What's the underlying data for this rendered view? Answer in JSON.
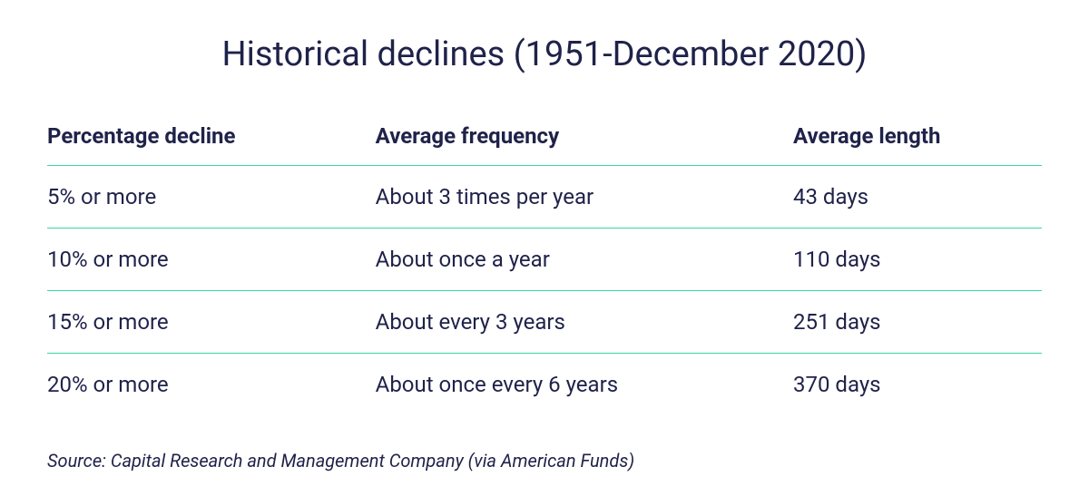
{
  "title": "Historical declines (1951-December 2020)",
  "colors": {
    "text": "#1f2249",
    "rule": "#37d9a5",
    "background": "#ffffff"
  },
  "columns": [
    "Percentage decline",
    "Average frequency",
    "Average length"
  ],
  "rows": [
    {
      "decline": "5% or more",
      "frequency": "About 3 times per year",
      "length": "43 days"
    },
    {
      "decline": "10% or more",
      "frequency": "About once a year",
      "length": "110 days"
    },
    {
      "decline": "15% or more",
      "frequency": "About every 3 years",
      "length": "251 days"
    },
    {
      "decline": "20% or more",
      "frequency": "About once every 6 years",
      "length": "370 days"
    }
  ],
  "source": "Source: Capital Research and Management Company (via American Funds)"
}
